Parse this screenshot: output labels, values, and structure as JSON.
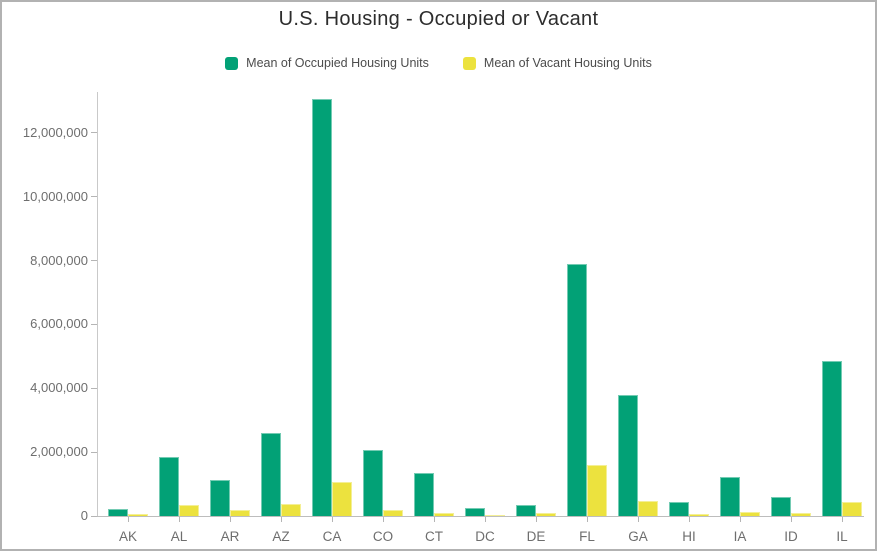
{
  "page": {
    "background": "#ffffff",
    "border_color": "#b2b2b2"
  },
  "chart_data": {
    "type": "bar",
    "title": "U.S. Housing - Occupied or Vacant",
    "categories": [
      "AK",
      "AL",
      "AR",
      "AZ",
      "CA",
      "CO",
      "CT",
      "DC",
      "DE",
      "FL",
      "GA",
      "HI",
      "IA",
      "ID",
      "IL"
    ],
    "series": [
      {
        "name": "Mean of Occupied Housing Units",
        "color": "#02a176",
        "values": [
          230000,
          1850000,
          1130000,
          2600000,
          13060000,
          2080000,
          1350000,
          250000,
          335000,
          7900000,
          3790000,
          440000,
          1220000,
          600000,
          4860000
        ]
      },
      {
        "name": "Mean of Vacant Housing Units",
        "color": "#ece23e",
        "values": [
          55000,
          360000,
          175000,
          370000,
          1070000,
          200000,
          105000,
          30000,
          90000,
          1590000,
          460000,
          75000,
          130000,
          90000,
          450000
        ]
      }
    ],
    "xlabel": "",
    "ylabel": "",
    "ylim": [
      0,
      13280000
    ],
    "y_ticks": [
      0,
      2000000,
      4000000,
      6000000,
      8000000,
      10000000,
      12000000
    ],
    "grid": false,
    "legend_position": "top",
    "axis_color": "#c9c9c9",
    "tick_label_color": "#6e6e6e",
    "title_color": "#2d2d2d",
    "legend_text_color": "#4c4c4c"
  }
}
